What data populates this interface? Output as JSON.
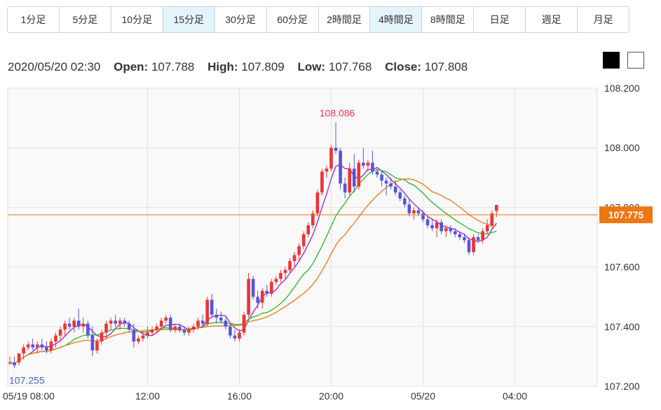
{
  "tabs": [
    {
      "label": "1分足",
      "active": false
    },
    {
      "label": "5分足",
      "active": false
    },
    {
      "label": "10分足",
      "active": false
    },
    {
      "label": "15分足",
      "active": true
    },
    {
      "label": "30分足",
      "active": false
    },
    {
      "label": "60分足",
      "active": false
    },
    {
      "label": "2時間足",
      "active": false
    },
    {
      "label": "4時間足",
      "active": true
    },
    {
      "label": "8時間足",
      "active": false
    },
    {
      "label": "日足",
      "active": false
    },
    {
      "label": "週足",
      "active": false
    },
    {
      "label": "月足",
      "active": false
    }
  ],
  "ohlc": {
    "datetime": "2020/05/20 02:30",
    "open_label": "Open:",
    "open": "107.788",
    "high_label": "High:",
    "high": "107.809",
    "low_label": "Low:",
    "low": "107.768",
    "close_label": "Close:",
    "close": "107.808"
  },
  "colors": {
    "up": "#ee3333",
    "down": "#5555dd",
    "ma_short": "#9922cc",
    "ma_mid": "#22bb22",
    "ma_long": "#ee7711",
    "price_line": "#ee7711",
    "label_up": "#ee3355",
    "label_down": "#4466bb",
    "grid": "#e2e2e2",
    "plot_bg": "#f9f9f9"
  },
  "chart_data": {
    "type": "candlestick",
    "ylim": [
      107.2,
      108.2
    ],
    "y_ticks": [
      "107.200",
      "107.400",
      "107.600",
      "107.800",
      "108.000",
      "108.200"
    ],
    "x_tick_labels": [
      "05/19 08:00",
      "12:00",
      "16:00",
      "20:00",
      "05/20",
      "04:00"
    ],
    "current_price": "107.775",
    "max_label": "108.086",
    "min_label": "107.255",
    "candles": [
      [
        107.28,
        107.3,
        107.27,
        107.28
      ],
      [
        107.28,
        107.3,
        107.26,
        107.27
      ],
      [
        107.28,
        107.31,
        107.27,
        107.31
      ],
      [
        107.31,
        107.34,
        107.29,
        107.33
      ],
      [
        107.33,
        107.35,
        107.32,
        107.34
      ],
      [
        107.34,
        107.36,
        107.32,
        107.33
      ],
      [
        107.33,
        107.35,
        107.31,
        107.34
      ],
      [
        107.34,
        107.36,
        107.32,
        107.33
      ],
      [
        107.33,
        107.35,
        107.31,
        107.32
      ],
      [
        107.32,
        107.36,
        107.31,
        107.35
      ],
      [
        107.35,
        107.38,
        107.33,
        107.37
      ],
      [
        107.37,
        107.4,
        107.35,
        107.39
      ],
      [
        107.39,
        107.42,
        107.37,
        107.41
      ],
      [
        107.41,
        107.43,
        107.39,
        107.4
      ],
      [
        107.4,
        107.43,
        107.38,
        107.42
      ],
      [
        107.42,
        107.46,
        107.39,
        107.4
      ],
      [
        107.4,
        107.43,
        107.38,
        107.41
      ],
      [
        107.41,
        107.42,
        107.36,
        107.37
      ],
      [
        107.37,
        107.4,
        107.3,
        107.32
      ],
      [
        107.32,
        107.36,
        107.31,
        107.35
      ],
      [
        107.35,
        107.39,
        107.34,
        107.38
      ],
      [
        107.38,
        107.42,
        107.36,
        107.41
      ],
      [
        107.41,
        107.43,
        107.39,
        107.42
      ],
      [
        107.42,
        107.44,
        107.4,
        107.41
      ],
      [
        107.41,
        107.43,
        107.39,
        107.42
      ],
      [
        107.42,
        107.43,
        107.4,
        107.41
      ],
      [
        107.41,
        107.42,
        107.38,
        107.39
      ],
      [
        107.39,
        107.41,
        107.33,
        107.35
      ],
      [
        107.35,
        107.37,
        107.34,
        107.36
      ],
      [
        107.36,
        107.38,
        107.35,
        107.37
      ],
      [
        107.37,
        107.4,
        107.36,
        107.38
      ],
      [
        107.38,
        107.4,
        107.37,
        107.39
      ],
      [
        107.39,
        107.41,
        107.38,
        107.4
      ],
      [
        107.4,
        107.43,
        107.39,
        107.42
      ],
      [
        107.42,
        107.44,
        107.41,
        107.43
      ],
      [
        107.43,
        107.44,
        107.38,
        107.39
      ],
      [
        107.39,
        107.41,
        107.38,
        107.4
      ],
      [
        107.4,
        107.41,
        107.38,
        107.39
      ],
      [
        107.39,
        107.4,
        107.37,
        107.38
      ],
      [
        107.38,
        107.4,
        107.37,
        107.39
      ],
      [
        107.39,
        107.41,
        107.38,
        107.4
      ],
      [
        107.4,
        107.43,
        107.39,
        107.42
      ],
      [
        107.42,
        107.44,
        107.4,
        107.41
      ],
      [
        107.41,
        107.5,
        107.4,
        107.49
      ],
      [
        107.49,
        107.51,
        107.43,
        107.44
      ],
      [
        107.44,
        107.46,
        107.41,
        107.43
      ],
      [
        107.43,
        107.45,
        107.41,
        107.42
      ],
      [
        107.42,
        107.43,
        107.39,
        107.4
      ],
      [
        107.4,
        107.41,
        107.36,
        107.37
      ],
      [
        107.37,
        107.39,
        107.35,
        107.36
      ],
      [
        107.36,
        107.39,
        107.35,
        107.38
      ],
      [
        107.38,
        107.45,
        107.37,
        107.44
      ],
      [
        107.44,
        107.58,
        107.43,
        107.56
      ],
      [
        107.56,
        107.57,
        107.49,
        107.5
      ],
      [
        107.5,
        107.52,
        107.46,
        107.48
      ],
      [
        107.48,
        107.53,
        107.46,
        107.52
      ],
      [
        107.52,
        107.54,
        107.5,
        107.51
      ],
      [
        107.51,
        107.56,
        107.5,
        107.55
      ],
      [
        107.55,
        107.57,
        107.54,
        107.56
      ],
      [
        107.56,
        107.59,
        107.55,
        107.58
      ],
      [
        107.58,
        107.6,
        107.56,
        107.59
      ],
      [
        107.59,
        107.63,
        107.58,
        107.62
      ],
      [
        107.62,
        107.65,
        107.6,
        107.64
      ],
      [
        107.64,
        107.68,
        107.62,
        107.67
      ],
      [
        107.67,
        107.72,
        107.66,
        107.71
      ],
      [
        107.71,
        107.75,
        107.7,
        107.74
      ],
      [
        107.74,
        107.79,
        107.73,
        107.78
      ],
      [
        107.78,
        107.86,
        107.77,
        107.85
      ],
      [
        107.85,
        107.93,
        107.84,
        107.92
      ],
      [
        107.92,
        107.94,
        107.9,
        107.93
      ],
      [
        107.93,
        108.01,
        107.92,
        108.0
      ],
      [
        108.0,
        108.086,
        107.98,
        107.99
      ],
      [
        107.99,
        108.0,
        107.86,
        107.88
      ],
      [
        107.88,
        107.9,
        107.83,
        107.85
      ],
      [
        107.85,
        107.95,
        107.84,
        107.93
      ],
      [
        107.93,
        107.98,
        107.85,
        107.87
      ],
      [
        107.87,
        107.96,
        107.86,
        107.95
      ],
      [
        107.95,
        108.0,
        107.93,
        107.94
      ],
      [
        107.94,
        107.96,
        107.92,
        107.95
      ],
      [
        107.95,
        107.99,
        107.91,
        107.92
      ],
      [
        107.92,
        107.93,
        107.9,
        107.91
      ],
      [
        107.91,
        107.92,
        107.87,
        107.89
      ],
      [
        107.89,
        107.9,
        107.84,
        107.88
      ],
      [
        107.88,
        107.9,
        107.86,
        107.87
      ],
      [
        107.87,
        107.89,
        107.84,
        107.85
      ],
      [
        107.85,
        107.86,
        107.82,
        107.83
      ],
      [
        107.83,
        107.84,
        107.8,
        107.81
      ],
      [
        107.81,
        107.83,
        107.77,
        107.78
      ],
      [
        107.78,
        107.8,
        107.76,
        107.79
      ],
      [
        107.79,
        107.8,
        107.77,
        107.78
      ],
      [
        107.78,
        107.79,
        107.75,
        107.76
      ],
      [
        107.76,
        107.77,
        107.73,
        107.74
      ],
      [
        107.74,
        107.76,
        107.72,
        107.73
      ],
      [
        107.73,
        107.76,
        107.7,
        107.75
      ],
      [
        107.75,
        107.76,
        107.71,
        107.72
      ],
      [
        107.72,
        107.74,
        107.7,
        107.73
      ],
      [
        107.73,
        107.74,
        107.71,
        107.72
      ],
      [
        107.72,
        107.73,
        107.7,
        107.71
      ],
      [
        107.71,
        107.72,
        107.69,
        107.7
      ],
      [
        107.7,
        107.71,
        107.68,
        107.69
      ],
      [
        107.69,
        107.7,
        107.64,
        107.65
      ],
      [
        107.65,
        107.71,
        107.64,
        107.7
      ],
      [
        107.7,
        107.71,
        107.68,
        107.69
      ],
      [
        107.69,
        107.73,
        107.68,
        107.72
      ],
      [
        107.72,
        107.76,
        107.71,
        107.74
      ],
      [
        107.74,
        107.79,
        107.73,
        107.78
      ],
      [
        107.788,
        107.809,
        107.768,
        107.808
      ]
    ]
  }
}
